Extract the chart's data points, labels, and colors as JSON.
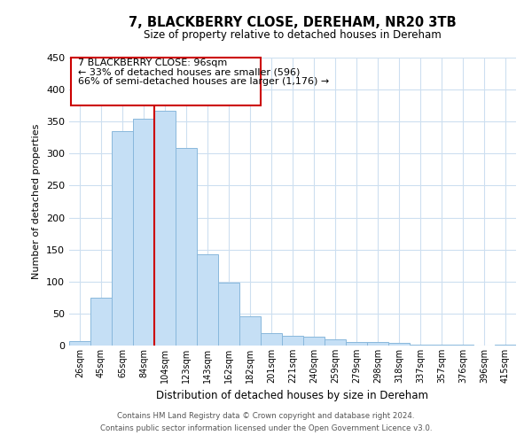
{
  "title": "7, BLACKBERRY CLOSE, DEREHAM, NR20 3TB",
  "subtitle": "Size of property relative to detached houses in Dereham",
  "xlabel": "Distribution of detached houses by size in Dereham",
  "ylabel": "Number of detached properties",
  "categories": [
    "26sqm",
    "45sqm",
    "65sqm",
    "84sqm",
    "104sqm",
    "123sqm",
    "143sqm",
    "162sqm",
    "182sqm",
    "201sqm",
    "221sqm",
    "240sqm",
    "259sqm",
    "279sqm",
    "298sqm",
    "318sqm",
    "337sqm",
    "357sqm",
    "376sqm",
    "396sqm",
    "415sqm"
  ],
  "values": [
    7,
    75,
    335,
    354,
    367,
    309,
    143,
    98,
    46,
    20,
    15,
    14,
    10,
    5,
    5,
    4,
    2,
    2,
    1,
    0,
    2
  ],
  "bar_color": "#c5dff5",
  "bar_edge_color": "#89b8dc",
  "vline_color": "#cc0000",
  "vline_x_index": 3.5,
  "annotation_line1": "7 BLACKBERRY CLOSE: 96sqm",
  "annotation_line2": "← 33% of detached houses are smaller (596)",
  "annotation_line3": "66% of semi-detached houses are larger (1,176) →",
  "annotation_box_color": "#ffffff",
  "annotation_box_edge_color": "#cc0000",
  "ylim": [
    0,
    450
  ],
  "yticks": [
    0,
    50,
    100,
    150,
    200,
    250,
    300,
    350,
    400,
    450
  ],
  "footer_line1": "Contains HM Land Registry data © Crown copyright and database right 2024.",
  "footer_line2": "Contains public sector information licensed under the Open Government Licence v3.0.",
  "bg_color": "#ffffff",
  "grid_color": "#cddff0"
}
